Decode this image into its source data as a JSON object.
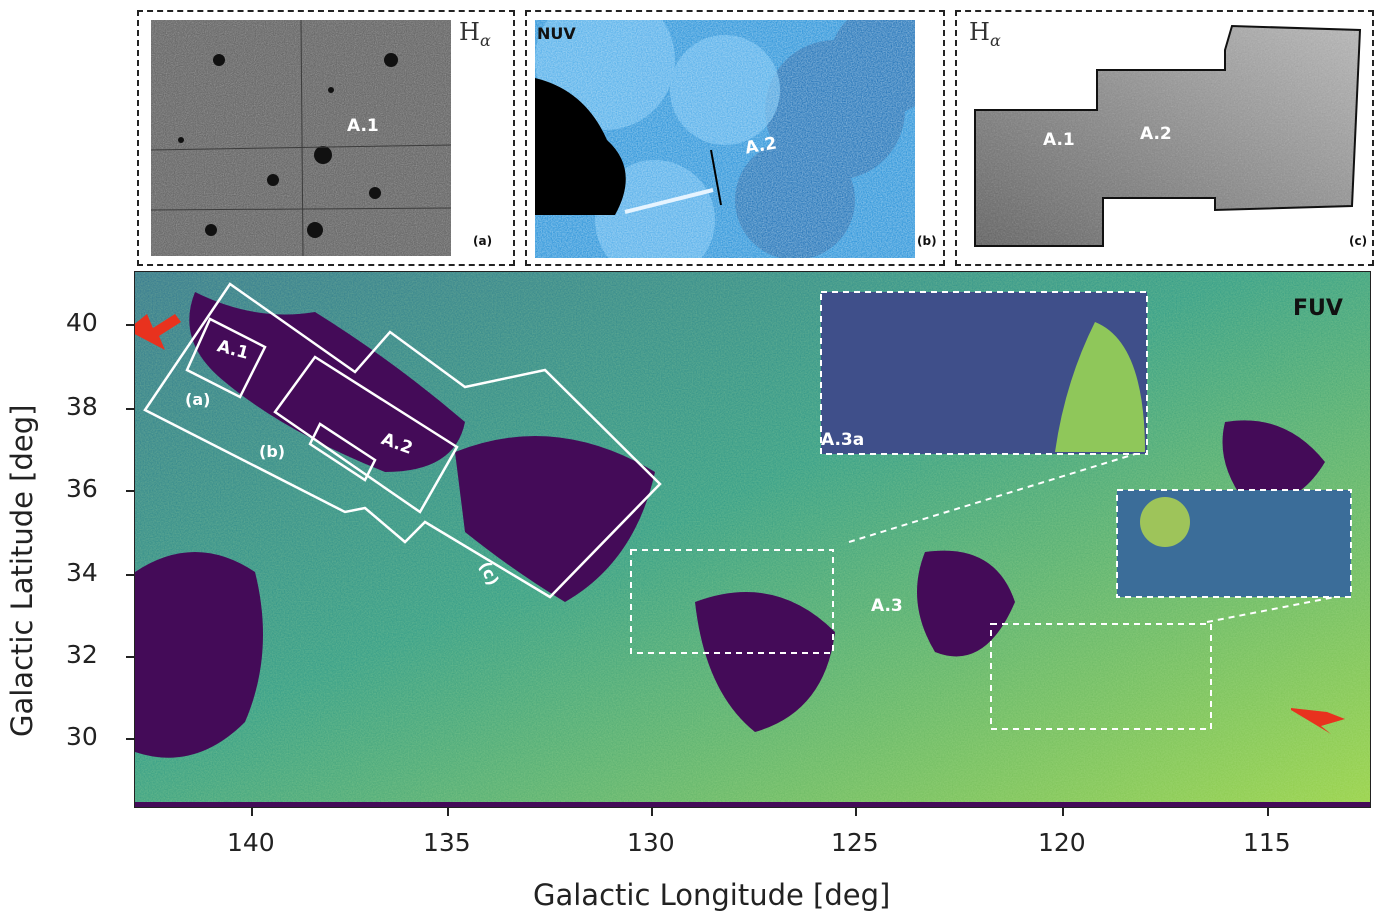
{
  "colors": {
    "fuv_background": "#3a7e8a",
    "fuv_bright": "#c8e63a",
    "fuv_empty": "#440b58",
    "nuv_background": "#1a8ad6",
    "halpha_gray": "#6b6b6b",
    "arrow": "#e8321e",
    "outline": "#ffffff"
  },
  "panel_a": {
    "label": "H",
    "label_sub": "α",
    "tag": "(a)",
    "region": "A.1"
  },
  "panel_b": {
    "label": "NUV",
    "tag": "(b)",
    "region": "A.2"
  },
  "panel_c": {
    "label": "H",
    "label_sub": "α",
    "tag": "(c)",
    "region_1": "A.1",
    "region_2": "A.2"
  },
  "main_panel": {
    "band_label": "FUV",
    "regions": {
      "a1": "A.1",
      "a2": "A.2",
      "a3": "A.3",
      "a3a": "A.3a"
    },
    "footprints": {
      "a": "(a)",
      "b": "(b)",
      "c": "(c)"
    }
  },
  "axes": {
    "xlabel": "Galactic Longitude [deg]",
    "ylabel": "Galactic Latitude [deg]",
    "xticks": [
      "140",
      "135",
      "130",
      "125",
      "120",
      "115"
    ],
    "yticks": [
      "40",
      "38",
      "36",
      "34",
      "32",
      "30"
    ]
  }
}
